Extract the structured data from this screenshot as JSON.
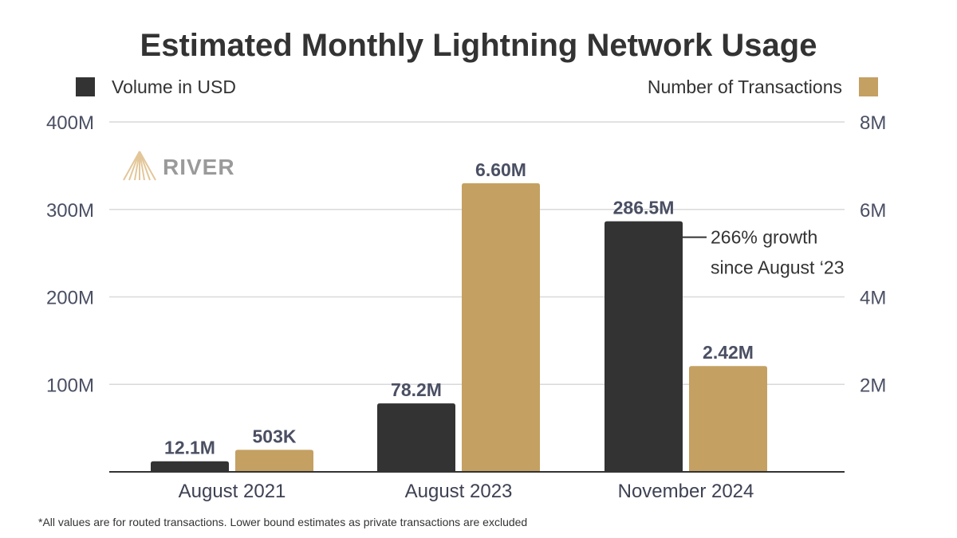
{
  "chart_data": {
    "type": "bar",
    "title": "Estimated Monthly Lightning Network Usage",
    "categories": [
      "August 2021",
      "August 2023",
      "November 2024"
    ],
    "series": [
      {
        "name": "Volume in USD",
        "axis": "left",
        "color": "#333333",
        "values": [
          12100000,
          78200000,
          286500000
        ],
        "labels": [
          "12.1M",
          "78.2M",
          "286.5M"
        ]
      },
      {
        "name": "Number of Transactions",
        "axis": "right",
        "color": "#c4a062",
        "values": [
          503000,
          6600000,
          2420000
        ],
        "labels": [
          "503K",
          "6.60M",
          "2.42M"
        ]
      }
    ],
    "y_left": {
      "min": 0,
      "max": 400000000,
      "ticks": [
        100000000,
        200000000,
        300000000,
        400000000
      ],
      "tick_labels": [
        "100M",
        "200M",
        "300M",
        "400M"
      ]
    },
    "y_right": {
      "min": 0,
      "max": 8000000,
      "ticks": [
        2000000,
        4000000,
        6000000,
        8000000
      ],
      "tick_labels": [
        "2M",
        "4M",
        "6M",
        "8M"
      ]
    },
    "grid": true,
    "legend": {
      "volume_position": "top-left",
      "transactions_position": "top-right"
    },
    "annotation": {
      "line1": "266% growth",
      "line2": "since August ‘23",
      "target_category": "November 2024",
      "target_series": "Volume in USD"
    },
    "footnote": "*All values are for routed transactions. Lower bound estimates as private transactions are excluded"
  },
  "logo": {
    "text": "RIVER"
  },
  "colors": {
    "dark": "#333333",
    "gold": "#c4a062",
    "grid": "#d9d9d9",
    "axis": "#333333",
    "tick": "#4a4f63"
  }
}
